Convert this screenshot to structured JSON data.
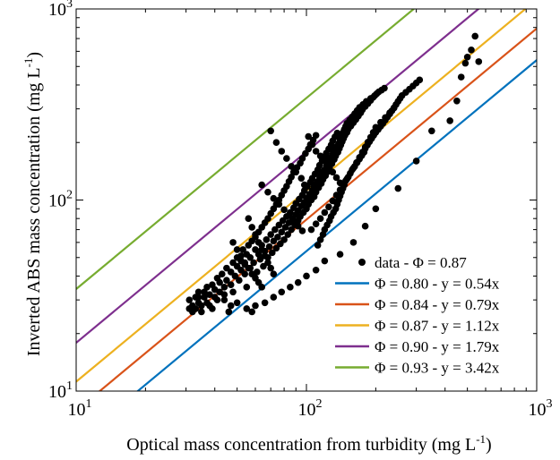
{
  "chart_data": {
    "type": "scatter",
    "title": "",
    "xlabel": "Optical mass concentration from turbidity (mg L",
    "xlabel_sup": "-1",
    "xlabel_close": ")",
    "ylabel": "Inverted ABS mass concentration (mg L",
    "ylabel_sup": "-1",
    "ylabel_close": ")",
    "xscale": "log",
    "yscale": "log",
    "xlim": [
      10,
      1000
    ],
    "ylim": [
      10,
      1000
    ],
    "x_ticks": [
      {
        "value": 10,
        "base": "10",
        "exp": "1"
      },
      {
        "value": 100,
        "base": "10",
        "exp": "2"
      },
      {
        "value": 1000,
        "base": "10",
        "exp": "3"
      }
    ],
    "y_ticks": [
      {
        "value": 10,
        "base": "10",
        "exp": "1"
      },
      {
        "value": 100,
        "base": "10",
        "exp": "2"
      },
      {
        "value": 1000,
        "base": "10",
        "exp": "3"
      }
    ],
    "grid": false,
    "legend_position": "bottom-right",
    "scatter": {
      "name": "data - Φ = 0.87",
      "color": "#000000",
      "points": [
        [
          31,
          30
        ],
        [
          31,
          27
        ],
        [
          32,
          26
        ],
        [
          32,
          28
        ],
        [
          33,
          31
        ],
        [
          33,
          27
        ],
        [
          34,
          29
        ],
        [
          34,
          33
        ],
        [
          35,
          28
        ],
        [
          36,
          31
        ],
        [
          37,
          29
        ],
        [
          37,
          35
        ],
        [
          38,
          32
        ],
        [
          38,
          28
        ],
        [
          39,
          36
        ],
        [
          40,
          31
        ],
        [
          40,
          34
        ],
        [
          41,
          39
        ],
        [
          42,
          33
        ],
        [
          42,
          37
        ],
        [
          43,
          41
        ],
        [
          44,
          35
        ],
        [
          44,
          30
        ],
        [
          45,
          38
        ],
        [
          45,
          44
        ],
        [
          46,
          26
        ],
        [
          47,
          36
        ],
        [
          47,
          42
        ],
        [
          48,
          47
        ],
        [
          48,
          33
        ],
        [
          49,
          40
        ],
        [
          50,
          45
        ],
        [
          50,
          50
        ],
        [
          51,
          38
        ],
        [
          52,
          43
        ],
        [
          52,
          48
        ],
        [
          53,
          55
        ],
        [
          54,
          41
        ],
        [
          54,
          46
        ],
        [
          55,
          52
        ],
        [
          55,
          35
        ],
        [
          56,
          58
        ],
        [
          57,
          44
        ],
        [
          57,
          50
        ],
        [
          58,
          61
        ],
        [
          58,
          26
        ],
        [
          59,
          47
        ],
        [
          60,
          55
        ],
        [
          60,
          64
        ],
        [
          61,
          42
        ],
        [
          62,
          52
        ],
        [
          62,
          68
        ],
        [
          63,
          49
        ],
        [
          64,
          58
        ],
        [
          64,
          72
        ],
        [
          65,
          45
        ],
        [
          66,
          54
        ],
        [
          66,
          76
        ],
        [
          67,
          62
        ],
        [
          68,
          50
        ],
        [
          68,
          80
        ],
        [
          69,
          57
        ],
        [
          70,
          66
        ],
        [
          70,
          85
        ],
        [
          71,
          53
        ],
        [
          72,
          61
        ],
        [
          72,
          90
        ],
        [
          73,
          70
        ],
        [
          74,
          56
        ],
        [
          74,
          95
        ],
        [
          75,
          64
        ],
        [
          76,
          74
        ],
        [
          76,
          100
        ],
        [
          77,
          59
        ],
        [
          78,
          68
        ],
        [
          78,
          106
        ],
        [
          79,
          78
        ],
        [
          80,
          62
        ],
        [
          80,
          112
        ],
        [
          81,
          72
        ],
        [
          82,
          82
        ],
        [
          82,
          118
        ],
        [
          83,
          66
        ],
        [
          84,
          76
        ],
        [
          84,
          125
        ],
        [
          85,
          86
        ],
        [
          86,
          70
        ],
        [
          86,
          132
        ],
        [
          87,
          80
        ],
        [
          88,
          91
        ],
        [
          88,
          140
        ],
        [
          89,
          74
        ],
        [
          90,
          84
        ],
        [
          90,
          96
        ],
        [
          91,
          148
        ],
        [
          92,
          78
        ],
        [
          92,
          88
        ],
        [
          93,
          101
        ],
        [
          94,
          156
        ],
        [
          94,
          82
        ],
        [
          95,
          93
        ],
        [
          96,
          106
        ],
        [
          96,
          165
        ],
        [
          97,
          86
        ],
        [
          98,
          97
        ],
        [
          98,
          112
        ],
        [
          99,
          175
        ],
        [
          100,
          90
        ],
        [
          100,
          102
        ],
        [
          101,
          118
        ],
        [
          102,
          185
        ],
        [
          102,
          95
        ],
        [
          103,
          107
        ],
        [
          104,
          124
        ],
        [
          104,
          195
        ],
        [
          105,
          100
        ],
        [
          106,
          112
        ],
        [
          106,
          130
        ],
        [
          107,
          206
        ],
        [
          108,
          104
        ],
        [
          108,
          118
        ],
        [
          109,
          137
        ],
        [
          110,
          218
        ],
        [
          110,
          110
        ],
        [
          111,
          124
        ],
        [
          112,
          144
        ],
        [
          112,
          58
        ],
        [
          113,
          116
        ],
        [
          114,
          130
        ],
        [
          114,
          152
        ],
        [
          115,
          62
        ],
        [
          116,
          122
        ],
        [
          116,
          136
        ],
        [
          117,
          160
        ],
        [
          118,
          66
        ],
        [
          118,
          128
        ],
        [
          119,
          143
        ],
        [
          120,
          168
        ],
        [
          120,
          70
        ],
        [
          121,
          134
        ],
        [
          122,
          150
        ],
        [
          122,
          176
        ],
        [
          123,
          74
        ],
        [
          124,
          141
        ],
        [
          124,
          158
        ],
        [
          125,
          185
        ],
        [
          126,
          78
        ],
        [
          126,
          148
        ],
        [
          127,
          166
        ],
        [
          128,
          194
        ],
        [
          128,
          82
        ],
        [
          129,
          155
        ],
        [
          130,
          174
        ],
        [
          130,
          204
        ],
        [
          131,
          86
        ],
        [
          132,
          163
        ],
        [
          132,
          182
        ],
        [
          133,
          214
        ],
        [
          134,
          90
        ],
        [
          134,
          170
        ],
        [
          135,
          190
        ],
        [
          136,
          224
        ],
        [
          136,
          95
        ],
        [
          137,
          178
        ],
        [
          138,
          198
        ],
        [
          138,
          100
        ],
        [
          139,
          186
        ],
        [
          140,
          207
        ],
        [
          140,
          105
        ],
        [
          141,
          194
        ],
        [
          142,
          216
        ],
        [
          142,
          110
        ],
        [
          143,
          202
        ],
        [
          144,
          225
        ],
        [
          144,
          115
        ],
        [
          145,
          210
        ],
        [
          146,
          234
        ],
        [
          146,
          120
        ],
        [
          147,
          218
        ],
        [
          148,
          243
        ],
        [
          148,
          126
        ],
        [
          150,
          226
        ],
        [
          150,
          252
        ],
        [
          152,
          132
        ],
        [
          152,
          235
        ],
        [
          154,
          262
        ],
        [
          155,
          138
        ],
        [
          156,
          244
        ],
        [
          158,
          272
        ],
        [
          158,
          144
        ],
        [
          160,
          254
        ],
        [
          162,
          283
        ],
        [
          162,
          150
        ],
        [
          164,
          264
        ],
        [
          166,
          294
        ],
        [
          166,
          157
        ],
        [
          168,
          275
        ],
        [
          170,
          305
        ],
        [
          170,
          164
        ],
        [
          172,
          286
        ],
        [
          174,
          171
        ],
        [
          175,
          297
        ],
        [
          176,
          316
        ],
        [
          178,
          178
        ],
        [
          180,
          309
        ],
        [
          180,
          186
        ],
        [
          182,
          328
        ],
        [
          184,
          194
        ],
        [
          185,
          320
        ],
        [
          188,
          202
        ],
        [
          190,
          340
        ],
        [
          190,
          332
        ],
        [
          192,
          210
        ],
        [
          195,
          345
        ],
        [
          196,
          218
        ],
        [
          198,
          352
        ],
        [
          200,
          226
        ],
        [
          202,
          360
        ],
        [
          205,
          234
        ],
        [
          206,
          368
        ],
        [
          210,
          243
        ],
        [
          212,
          376
        ],
        [
          215,
          252
        ],
        [
          218,
          385
        ],
        [
          220,
          262
        ],
        [
          225,
          272
        ],
        [
          230,
          282
        ],
        [
          235,
          293
        ],
        [
          240,
          304
        ],
        [
          245,
          316
        ],
        [
          250,
          328
        ],
        [
          255,
          340
        ],
        [
          260,
          352
        ],
        [
          270,
          366
        ],
        [
          280,
          380
        ],
        [
          290,
          395
        ],
        [
          300,
          410
        ],
        [
          310,
          425
        ],
        [
          350,
          230
        ],
        [
          420,
          260
        ],
        [
          450,
          330
        ],
        [
          470,
          440
        ],
        [
          490,
          520
        ],
        [
          500,
          560
        ],
        [
          520,
          610
        ],
        [
          540,
          720
        ],
        [
          560,
          530
        ],
        [
          300,
          160
        ],
        [
          250,
          115
        ],
        [
          200,
          90
        ],
        [
          180,
          73
        ],
        [
          160,
          60
        ],
        [
          140,
          52
        ],
        [
          120,
          48
        ],
        [
          110,
          43
        ],
        [
          100,
          40
        ],
        [
          92,
          37
        ],
        [
          85,
          35
        ],
        [
          78,
          33
        ],
        [
          72,
          31
        ],
        [
          66,
          29
        ],
        [
          60,
          28
        ],
        [
          55,
          27
        ],
        [
          50,
          29
        ],
        [
          47,
          28
        ],
        [
          44,
          32
        ],
        [
          41,
          30
        ],
        [
          39,
          27
        ],
        [
          36,
          33
        ],
        [
          35,
          26
        ],
        [
          34,
          31
        ],
        [
          70,
          230
        ],
        [
          74,
          200
        ],
        [
          78,
          180
        ],
        [
          82,
          165
        ],
        [
          86,
          150
        ],
        [
          90,
          140
        ],
        [
          95,
          130
        ],
        [
          98,
          120
        ],
        [
          102,
          215
        ],
        [
          106,
          195
        ],
        [
          110,
          180
        ],
        [
          115,
          170
        ],
        [
          120,
          160
        ],
        [
          125,
          150
        ],
        [
          130,
          140
        ],
        [
          135,
          131
        ],
        [
          140,
          123
        ],
        [
          64,
          120
        ],
        [
          68,
          110
        ],
        [
          72,
          102
        ],
        [
          76,
          95
        ],
        [
          80,
          89
        ],
        [
          84,
          83
        ],
        [
          88,
          78
        ],
        [
          92,
          73
        ],
        [
          96,
          69
        ],
        [
          56,
          80
        ],
        [
          58,
          72
        ],
        [
          60,
          66
        ],
        [
          62,
          60
        ],
        [
          64,
          55
        ],
        [
          66,
          51
        ],
        [
          68,
          47
        ],
        [
          70,
          44
        ],
        [
          72,
          41
        ],
        [
          48,
          60
        ],
        [
          50,
          55
        ],
        [
          52,
          51
        ],
        [
          54,
          47
        ],
        [
          56,
          44
        ],
        [
          58,
          41
        ],
        [
          60,
          39
        ],
        [
          62,
          37
        ],
        [
          64,
          35
        ],
        [
          105,
          70
        ],
        [
          110,
          75
        ],
        [
          115,
          80
        ],
        [
          120,
          86
        ],
        [
          125,
          92
        ],
        [
          130,
          99
        ],
        [
          135,
          106
        ],
        [
          140,
          113
        ],
        [
          145,
          121
        ],
        [
          150,
          129
        ],
        [
          155,
          138
        ],
        [
          160,
          147
        ],
        [
          165,
          157
        ],
        [
          170,
          167
        ],
        [
          175,
          178
        ],
        [
          180,
          189
        ],
        [
          185,
          201
        ],
        [
          190,
          213
        ],
        [
          195,
          226
        ],
        [
          200,
          240
        ],
        [
          210,
          255
        ],
        [
          220,
          270
        ],
        [
          230,
          286
        ],
        [
          240,
          303
        ]
      ]
    },
    "lines": [
      {
        "name": "Φ = 0.80 - y = 0.54x",
        "slope": 0.54,
        "color": "#0072BD"
      },
      {
        "name": "Φ = 0.84 - y = 0.79x",
        "slope": 0.79,
        "color": "#D95319"
      },
      {
        "name": "Φ = 0.87 - y = 1.12x",
        "slope": 1.12,
        "color": "#EDB120"
      },
      {
        "name": "Φ = 0.90 - y = 1.79x",
        "slope": 1.79,
        "color": "#7E2F8E"
      },
      {
        "name": "Φ = 0.93 - y = 3.42x",
        "slope": 3.42,
        "color": "#77AC30"
      }
    ]
  }
}
